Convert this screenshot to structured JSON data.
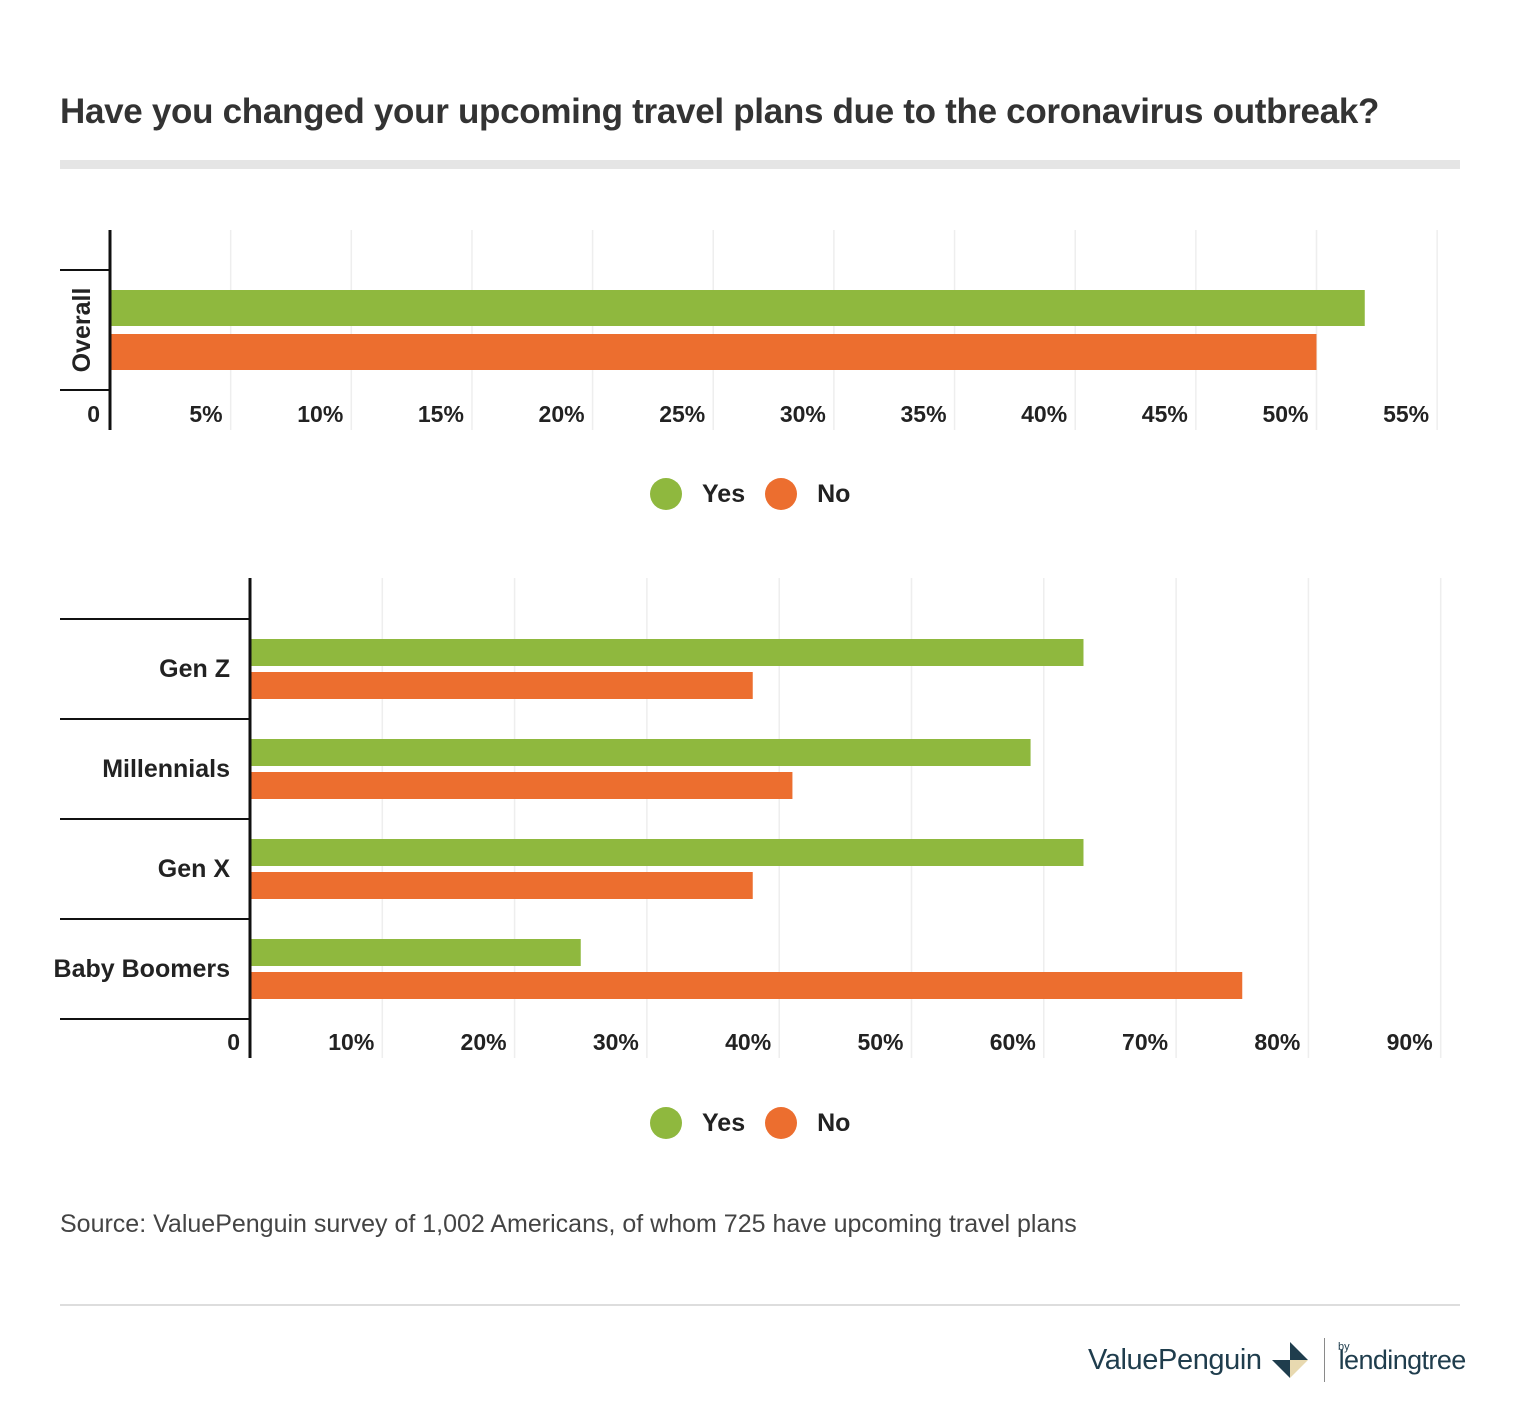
{
  "title": "Have you changed your upcoming travel plans due to the coronavirus outbreak?",
  "colors": {
    "yes": "#8fb83e",
    "no": "#ec6e2f",
    "grid": "#eeeeee",
    "axis": "#111111"
  },
  "legend": {
    "yes": "Yes",
    "no": "No"
  },
  "chart_data": [
    {
      "type": "bar",
      "orientation": "horizontal",
      "title": "",
      "categories": [
        "Overall"
      ],
      "series": [
        {
          "name": "Yes",
          "values": [
            52
          ]
        },
        {
          "name": "No",
          "values": [
            50
          ]
        }
      ],
      "xlim": [
        0,
        55
      ],
      "xticks": [
        0,
        5,
        10,
        15,
        20,
        25,
        30,
        35,
        40,
        45,
        50,
        55
      ],
      "xtick_labels": [
        "0",
        "5%",
        "10%",
        "15%",
        "20%",
        "25%",
        "30%",
        "35%",
        "40%",
        "45%",
        "50%",
        "55%"
      ],
      "ylabel_rotated": true,
      "legend": "bottom-center"
    },
    {
      "type": "bar",
      "orientation": "horizontal",
      "title": "",
      "categories": [
        "Gen Z",
        "Millennials",
        "Gen X",
        "Baby Boomers"
      ],
      "series": [
        {
          "name": "Yes",
          "values": [
            63,
            59,
            63,
            25
          ]
        },
        {
          "name": "No",
          "values": [
            38,
            41,
            38,
            75
          ]
        }
      ],
      "xlim": [
        0,
        90
      ],
      "xticks": [
        0,
        10,
        20,
        30,
        40,
        50,
        60,
        70,
        80,
        90
      ],
      "xtick_labels": [
        "0",
        "10%",
        "20%",
        "30%",
        "40%",
        "50%",
        "60%",
        "70%",
        "80%",
        "90%"
      ],
      "legend": "bottom-center"
    }
  ],
  "source": "Source: ValuePenguin survey of 1,002 Americans, of whom 725 have upcoming travel plans",
  "brand": {
    "name": "ValuePenguin",
    "by": "by",
    "partner": "lendingtree"
  }
}
